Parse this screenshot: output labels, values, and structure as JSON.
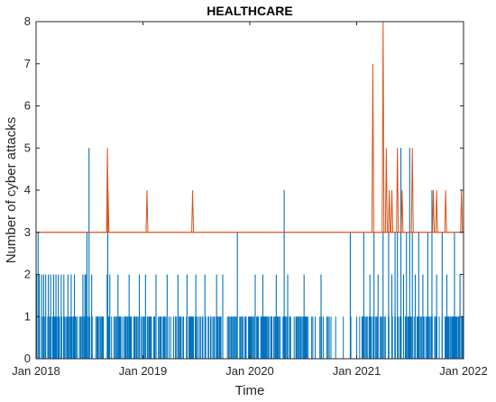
{
  "chart_data": {
    "type": "line",
    "title": "HEALTHCARE",
    "xlabel": "Time",
    "ylabel": "Number of cyber attacks",
    "xlim": [
      "2018-01-01",
      "2022-01-01"
    ],
    "ylim": [
      0,
      8
    ],
    "x_ticks": [
      "Jan 2018",
      "Jan 2019",
      "Jan 2020",
      "Jan 2021",
      "Jan 2022"
    ],
    "y_ticks": [
      0,
      1,
      2,
      3,
      4,
      5,
      6,
      7,
      8
    ],
    "grid": false,
    "colors": {
      "daily": "#0072BD",
      "threshold": "#D95319"
    },
    "series": [
      {
        "role": "daily",
        "color": "#0072BD",
        "spikes": [
          [
            "2018-01-03",
            2
          ],
          [
            "2018-01-08",
            3
          ],
          [
            "2018-01-12",
            2
          ],
          [
            "2018-01-20",
            2
          ],
          [
            "2018-01-27",
            2
          ],
          [
            "2018-02-03",
            2
          ],
          [
            "2018-02-12",
            2
          ],
          [
            "2018-02-20",
            2
          ],
          [
            "2018-03-02",
            2
          ],
          [
            "2018-03-10",
            2
          ],
          [
            "2018-03-18",
            2
          ],
          [
            "2018-03-28",
            2
          ],
          [
            "2018-04-06",
            2
          ],
          [
            "2018-04-20",
            2
          ],
          [
            "2018-05-01",
            2
          ],
          [
            "2018-05-12",
            2
          ],
          [
            "2018-06-10",
            2
          ],
          [
            "2018-06-17",
            2
          ],
          [
            "2018-06-20",
            2
          ],
          [
            "2018-06-24",
            3
          ],
          [
            "2018-07-01",
            5
          ],
          [
            "2018-07-10",
            2
          ],
          [
            "2018-09-01",
            2
          ],
          [
            "2018-09-03",
            3
          ],
          [
            "2018-09-10",
            2
          ],
          [
            "2018-10-08",
            2
          ],
          [
            "2018-11-15",
            2
          ],
          [
            "2018-12-20",
            2
          ],
          [
            "2019-01-10",
            2
          ],
          [
            "2019-02-15",
            2
          ],
          [
            "2019-03-25",
            2
          ],
          [
            "2019-05-01",
            2
          ],
          [
            "2019-06-01",
            2
          ],
          [
            "2019-07-01",
            2
          ],
          [
            "2019-08-01",
            2
          ],
          [
            "2019-09-10",
            2
          ],
          [
            "2019-10-01",
            2
          ],
          [
            "2019-11-20",
            3
          ],
          [
            "2020-01-20",
            2
          ],
          [
            "2020-02-15",
            2
          ],
          [
            "2020-04-01",
            2
          ],
          [
            "2020-04-28",
            4
          ],
          [
            "2020-05-10",
            2
          ],
          [
            "2020-07-05",
            2
          ],
          [
            "2020-09-01",
            2
          ],
          [
            "2020-12-10",
            3
          ],
          [
            "2021-01-25",
            3
          ],
          [
            "2021-02-15",
            2
          ],
          [
            "2021-03-01",
            3
          ],
          [
            "2021-03-15",
            2
          ],
          [
            "2021-04-01",
            3
          ],
          [
            "2021-04-20",
            3
          ],
          [
            "2021-05-01",
            2
          ],
          [
            "2021-05-12",
            3
          ],
          [
            "2021-05-20",
            3
          ],
          [
            "2021-06-01",
            5
          ],
          [
            "2021-06-10",
            2
          ],
          [
            "2021-06-20",
            3
          ],
          [
            "2021-07-01",
            5
          ],
          [
            "2021-07-10",
            3
          ],
          [
            "2021-07-20",
            2
          ],
          [
            "2021-08-01",
            3
          ],
          [
            "2021-08-15",
            2
          ],
          [
            "2021-09-01",
            3
          ],
          [
            "2021-09-15",
            4
          ],
          [
            "2021-10-01",
            2
          ],
          [
            "2021-10-20",
            3
          ],
          [
            "2021-11-05",
            2
          ],
          [
            "2021-12-01",
            3
          ],
          [
            "2021-12-20",
            2
          ]
        ]
      },
      {
        "role": "threshold",
        "color": "#D95319",
        "baseline": 3,
        "spikes": [
          [
            "2018-06-28",
            3
          ],
          [
            "2018-09-02",
            5
          ],
          [
            "2018-09-04",
            4
          ],
          [
            "2019-01-15",
            4
          ],
          [
            "2019-06-20",
            4
          ],
          [
            "2021-02-25",
            7
          ],
          [
            "2021-03-05",
            3
          ],
          [
            "2021-04-01",
            8
          ],
          [
            "2021-04-12",
            5
          ],
          [
            "2021-04-22",
            4
          ],
          [
            "2021-05-01",
            4
          ],
          [
            "2021-05-20",
            5
          ],
          [
            "2021-06-05",
            4
          ],
          [
            "2021-07-10",
            5
          ],
          [
            "2021-09-20",
            4
          ],
          [
            "2021-10-01",
            4
          ],
          [
            "2021-11-01",
            4
          ],
          [
            "2021-12-25",
            4
          ]
        ]
      }
    ]
  }
}
